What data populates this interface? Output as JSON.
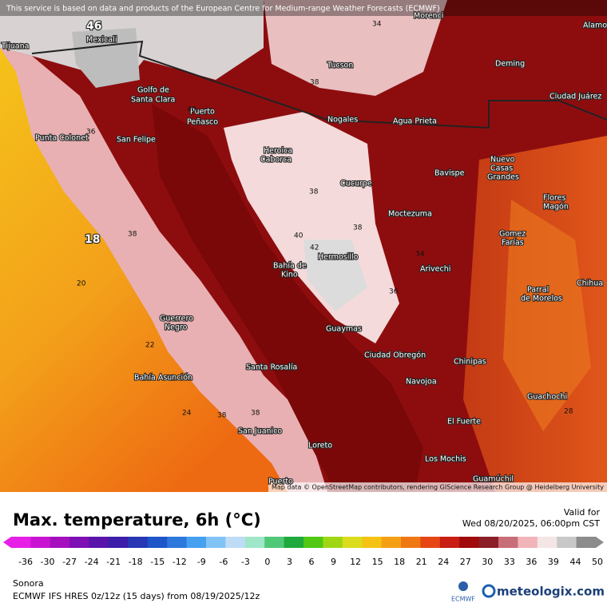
{
  "map": {
    "notice": "This service is based on data and products of the European Centre for Medium-range Weather Forecasts (ECMWF)",
    "attribution": "Map data © OpenStreetMap contributors, rendering GIScience Research Group @ Heidelberg University",
    "cities": [
      "Tijuana",
      "Mexicali",
      "Golfo de",
      "Santa Clara",
      "Puerto",
      "Peñasco",
      "Tucson",
      "Deming",
      "Ciudad Juárez",
      "Alamo",
      "Morenci",
      "Nogales",
      "Agua Prieta",
      "San Felipe",
      "Punta Colonet",
      "Heroica",
      "Caborca",
      "Cucurpe",
      "Bavispe",
      "Nuevo",
      "Casas",
      "Grandes",
      "Flores",
      "Magón",
      "Moctezuma",
      "Gomez",
      "Farías",
      "Hermosillo",
      "Bahía de",
      "Kino",
      "Arivechi",
      "Chihua",
      "Parral",
      "de Morelos",
      "Guerrero",
      "Negro",
      "Guaymas",
      "Ciudad Obregón",
      "Chinipas",
      "Santa Rosalía",
      "Navojoa",
      "Bahía Asunción",
      "Guachochi",
      "El Fuerte",
      "San Juanico",
      "Loreto",
      "Los Mochis",
      "Guamúchil",
      "Puerto"
    ],
    "contour_labels": [
      "46",
      "38",
      "40",
      "36",
      "18",
      "20",
      "38",
      "40",
      "42",
      "38",
      "38",
      "36",
      "34",
      "24",
      "38",
      "34",
      "22",
      "38",
      "28"
    ]
  },
  "legend": {
    "title": "Max. temperature, 6h (°C)",
    "valid_label": "Valid for",
    "valid_time": "Wed 08/20/2025, 06:00pm CST",
    "ticks": [
      -36,
      -30,
      -27,
      -24,
      -21,
      -18,
      -15,
      -12,
      -9,
      -6,
      -3,
      0,
      3,
      6,
      9,
      12,
      15,
      18,
      21,
      24,
      27,
      30,
      33,
      36,
      39,
      44,
      50
    ]
  },
  "footer": {
    "region": "Sonora",
    "model": "ECMWF IFS HRES 0z/12z (15 days) from 08/19/2025/12z",
    "ecmwf": "ECMWF",
    "brand": "meteologix.com"
  }
}
